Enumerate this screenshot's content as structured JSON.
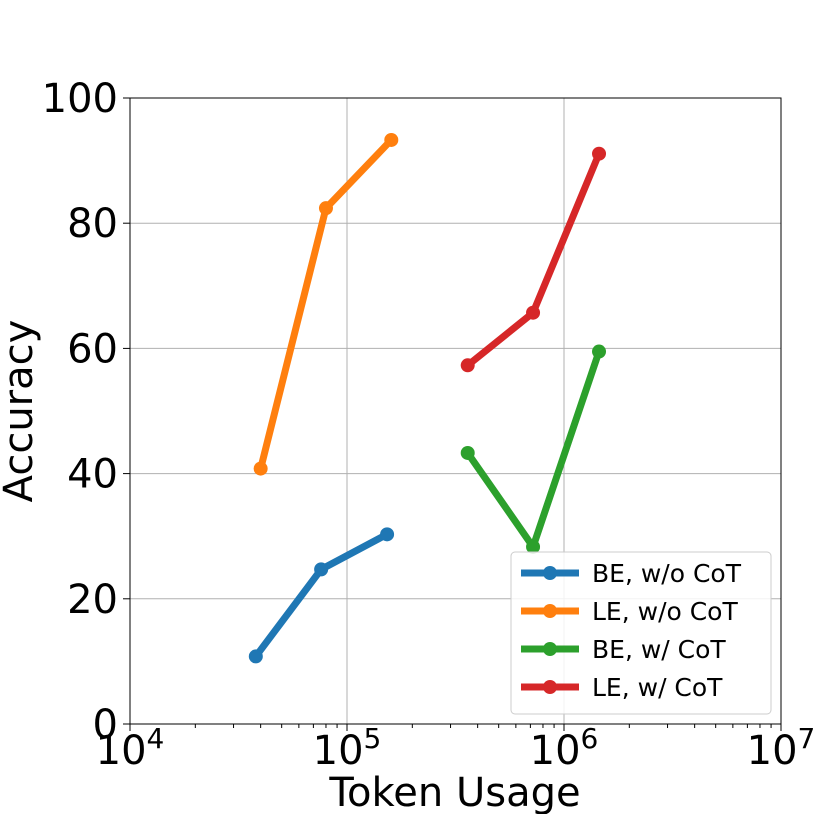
{
  "chart_data": {
    "type": "line",
    "title": "",
    "xlabel": "Token Usage",
    "ylabel": "Accuracy",
    "xscale": "log",
    "xlim": [
      10000,
      10000000
    ],
    "ylim": [
      0,
      100
    ],
    "xticks": [
      {
        "value": 10000,
        "base": "10",
        "exp": "4"
      },
      {
        "value": 100000,
        "base": "10",
        "exp": "5"
      },
      {
        "value": 1000000,
        "base": "10",
        "exp": "6"
      },
      {
        "value": 10000000,
        "base": "10",
        "exp": "7"
      }
    ],
    "yticks": [
      0,
      20,
      40,
      60,
      80,
      100
    ],
    "grid": true,
    "legend_position": "lower-right",
    "series": [
      {
        "name": "BE, w/o CoT",
        "color": "#1f77b4",
        "points": [
          [
            38000,
            10.8
          ],
          [
            76000,
            24.7
          ],
          [
            153000,
            30.3
          ]
        ]
      },
      {
        "name": "LE, w/o CoT",
        "color": "#ff7f0e",
        "points": [
          [
            40000,
            40.8
          ],
          [
            80000,
            82.4
          ],
          [
            160000,
            93.3
          ]
        ]
      },
      {
        "name": "BE, w/ CoT",
        "color": "#2ca02c",
        "points": [
          [
            360000,
            43.3
          ],
          [
            720000,
            28.3
          ],
          [
            1450000,
            59.5
          ]
        ]
      },
      {
        "name": "LE, w/ CoT",
        "color": "#d62728",
        "points": [
          [
            360000,
            57.3
          ],
          [
            720000,
            65.7
          ],
          [
            1450000,
            91.1
          ]
        ]
      }
    ]
  }
}
